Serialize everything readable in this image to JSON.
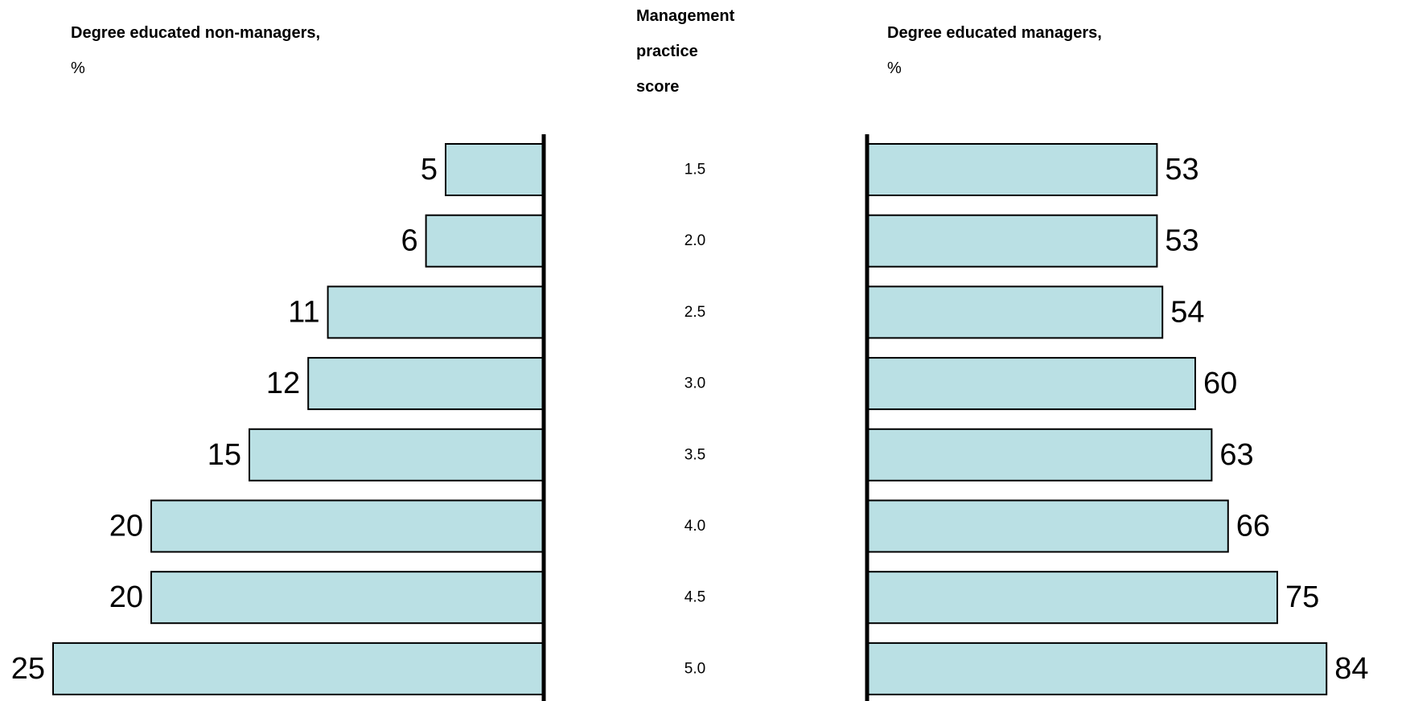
{
  "chart_data": {
    "type": "bar",
    "title": "",
    "categories": [
      "1.5",
      "2.0",
      "2.5",
      "3.0",
      "3.5",
      "4.0",
      "4.5",
      "5.0"
    ],
    "category_title": [
      "Management",
      "practice",
      "score"
    ],
    "series": [
      {
        "name": "Degree educated non-managers,",
        "unit": "%",
        "values": [
          5,
          6,
          11,
          12,
          15,
          20,
          20,
          25
        ]
      },
      {
        "name": "Degree educated managers,",
        "unit": "%",
        "values": [
          53,
          53,
          54,
          60,
          63,
          66,
          75,
          84
        ]
      }
    ],
    "colors": {
      "bar_fill": "#bae0e4",
      "bar_stroke": "#000000",
      "axis": "#000000"
    },
    "grid": false,
    "legend": "none"
  }
}
